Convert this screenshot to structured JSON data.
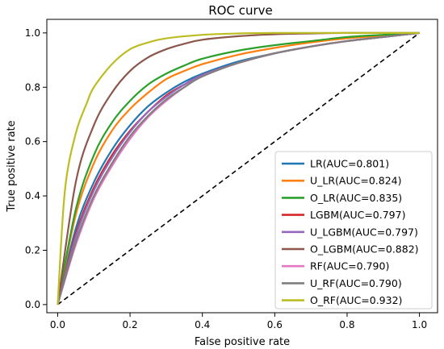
{
  "chart_data": {
    "type": "line",
    "title": "ROC curve",
    "xlabel": "False positive rate",
    "ylabel": "True positive rate",
    "xlim": [
      -0.03,
      1.05
    ],
    "ylim": [
      -0.03,
      1.05
    ],
    "xticks": [
      "0.0",
      "0.2",
      "0.4",
      "0.6",
      "0.8",
      "1.0"
    ],
    "yticks": [
      "0.0",
      "0.2",
      "0.4",
      "0.6",
      "0.8",
      "1.0"
    ],
    "grid": false,
    "legend_position": "lower-right",
    "reference_line": {
      "x": [
        0,
        1
      ],
      "y": [
        0,
        1
      ],
      "style": "dashed",
      "color": "#000000"
    },
    "series": [
      {
        "name": "LR(AUC=0.801)",
        "color": "#1f77b4",
        "x": [
          0,
          0.05,
          0.1,
          0.15,
          0.2,
          0.25,
          0.3,
          0.35,
          0.4,
          0.5,
          0.6,
          0.7,
          0.8,
          0.9,
          1.0
        ],
        "y": [
          0,
          0.28,
          0.45,
          0.57,
          0.66,
          0.73,
          0.78,
          0.82,
          0.85,
          0.895,
          0.925,
          0.95,
          0.97,
          0.985,
          1.0
        ]
      },
      {
        "name": "U_LR(AUC=0.824)",
        "color": "#ff7f0e",
        "x": [
          0,
          0.05,
          0.1,
          0.15,
          0.2,
          0.25,
          0.3,
          0.35,
          0.4,
          0.5,
          0.6,
          0.7,
          0.8,
          0.9,
          1.0
        ],
        "y": [
          0,
          0.33,
          0.52,
          0.64,
          0.72,
          0.78,
          0.83,
          0.86,
          0.885,
          0.92,
          0.945,
          0.965,
          0.98,
          0.99,
          1.0
        ]
      },
      {
        "name": "O_LR(AUC=0.835)",
        "color": "#2ca02c",
        "x": [
          0,
          0.05,
          0.1,
          0.15,
          0.2,
          0.25,
          0.3,
          0.35,
          0.4,
          0.5,
          0.6,
          0.7,
          0.8,
          0.9,
          1.0
        ],
        "y": [
          0,
          0.35,
          0.55,
          0.67,
          0.75,
          0.81,
          0.85,
          0.88,
          0.905,
          0.935,
          0.955,
          0.97,
          0.985,
          0.993,
          1.0
        ]
      },
      {
        "name": "LGBM(AUC=0.797)",
        "color": "#d62728",
        "x": [
          0,
          0.05,
          0.1,
          0.15,
          0.2,
          0.25,
          0.3,
          0.35,
          0.4,
          0.5,
          0.6,
          0.7,
          0.8,
          0.9,
          1.0
        ],
        "y": [
          0,
          0.26,
          0.43,
          0.55,
          0.64,
          0.71,
          0.77,
          0.81,
          0.845,
          0.89,
          0.925,
          0.95,
          0.97,
          0.985,
          1.0
        ]
      },
      {
        "name": "U_LGBM(AUC=0.797)",
        "color": "#9467bd",
        "x": [
          0,
          0.05,
          0.1,
          0.15,
          0.2,
          0.25,
          0.3,
          0.35,
          0.4,
          0.5,
          0.6,
          0.7,
          0.8,
          0.9,
          1.0
        ],
        "y": [
          0,
          0.25,
          0.42,
          0.54,
          0.635,
          0.71,
          0.765,
          0.81,
          0.845,
          0.89,
          0.925,
          0.95,
          0.97,
          0.985,
          1.0
        ]
      },
      {
        "name": "O_LGBM(AUC=0.882)",
        "color": "#8c564b",
        "x": [
          0,
          0.05,
          0.1,
          0.15,
          0.2,
          0.25,
          0.3,
          0.35,
          0.4,
          0.5,
          0.6,
          0.7,
          0.8,
          0.9,
          1.0
        ],
        "y": [
          0,
          0.45,
          0.66,
          0.78,
          0.86,
          0.91,
          0.94,
          0.96,
          0.975,
          0.988,
          0.995,
          0.998,
          1.0,
          1.0,
          1.0
        ]
      },
      {
        "name": "RF(AUC=0.790)",
        "color": "#e377c2",
        "x": [
          0,
          0.05,
          0.1,
          0.15,
          0.2,
          0.25,
          0.3,
          0.35,
          0.4,
          0.5,
          0.6,
          0.7,
          0.8,
          0.9,
          1.0
        ],
        "y": [
          0,
          0.22,
          0.39,
          0.51,
          0.61,
          0.69,
          0.75,
          0.8,
          0.84,
          0.89,
          0.925,
          0.95,
          0.97,
          0.985,
          1.0
        ]
      },
      {
        "name": "U_RF(AUC=0.790)",
        "color": "#7f7f7f",
        "x": [
          0,
          0.05,
          0.1,
          0.15,
          0.2,
          0.25,
          0.3,
          0.35,
          0.4,
          0.5,
          0.6,
          0.7,
          0.8,
          0.9,
          1.0
        ],
        "y": [
          0,
          0.23,
          0.4,
          0.52,
          0.62,
          0.695,
          0.755,
          0.8,
          0.84,
          0.89,
          0.925,
          0.95,
          0.97,
          0.985,
          1.0
        ]
      },
      {
        "name": "O_RF(AUC=0.932)",
        "color": "#bcbd22",
        "x": [
          0,
          0.02,
          0.05,
          0.08,
          0.1,
          0.15,
          0.2,
          0.25,
          0.3,
          0.4,
          0.5,
          0.6,
          0.8,
          1.0
        ],
        "y": [
          0,
          0.42,
          0.63,
          0.74,
          0.8,
          0.885,
          0.94,
          0.965,
          0.98,
          0.993,
          0.998,
          1.0,
          1.0,
          1.0
        ]
      }
    ]
  }
}
